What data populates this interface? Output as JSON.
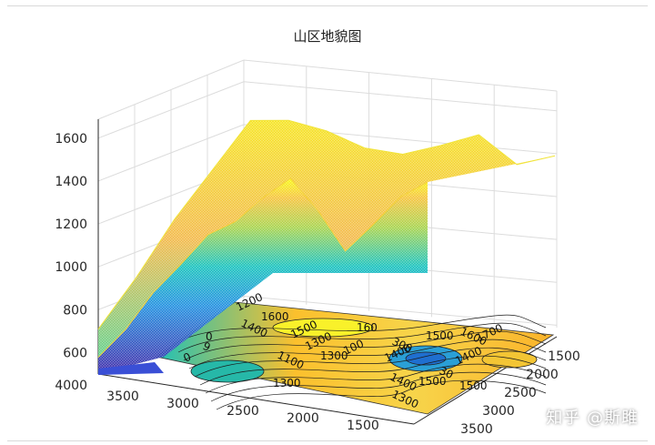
{
  "chart_data": {
    "type": "surface",
    "title": "山区地貌图",
    "xlabel": "",
    "ylabel": "",
    "zlabel": "",
    "grid": true,
    "colormap": "parula",
    "x_ticks": [
      1500,
      2000,
      2500,
      3000,
      3500
    ],
    "y_ticks": [
      3500,
      3000,
      2500,
      2000,
      1500
    ],
    "y_ticks_right": [
      1500,
      2000,
      2500,
      3000,
      3500
    ],
    "z_ticks": [
      4000,
      600,
      800,
      1000,
      1200,
      1400,
      1600
    ],
    "contour_labels": [
      "1200",
      "1600",
      "1400",
      "1500",
      "160",
      "300",
      "1400",
      "1500",
      "1600",
      "1700",
      "1300",
      "1100",
      "1300",
      "1300",
      "1400",
      "1400",
      "1500",
      "1300",
      "100",
      "1500",
      "9",
      "0",
      "0",
      "30"
    ],
    "ridge_near_z": [
      620,
      760,
      940,
      1080,
      1230,
      1300,
      1420,
      1520,
      1380,
      1200,
      1330,
      1470,
      1550
    ],
    "ridge_far_z": [
      650,
      900,
      1180,
      1420,
      1660,
      1670,
      1630,
      1560,
      1540,
      1590,
      1650,
      1520,
      1570
    ]
  },
  "watermark": "知乎 @斯雎",
  "colors": {
    "low": "#3e26a8",
    "mid": "#18b5c9",
    "high": "#f9fb0e",
    "contour_fill": "#fbc02d"
  }
}
